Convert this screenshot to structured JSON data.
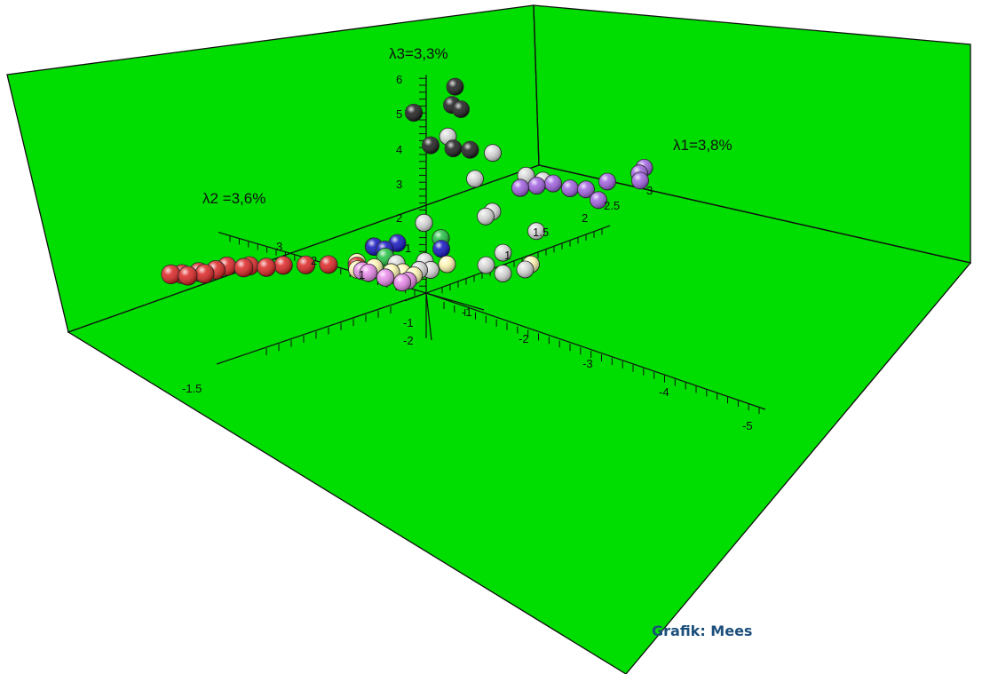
{
  "credit": "Grafik: Mees",
  "chart_data": {
    "type": "scatter",
    "dimensions": 3,
    "background_color": "#00dd00",
    "axes": {
      "x": {
        "label": "λ1=3,8%",
        "ticks": [
          "3",
          "2.5",
          "2",
          "1.5",
          "1"
        ]
      },
      "y": {
        "label": "λ2 =3,6%",
        "ticks": [
          "3",
          "2",
          "1"
        ]
      },
      "z": {
        "label": "λ3=3,3%",
        "ticks": [
          "6",
          "5",
          "4",
          "3",
          "2",
          "1"
        ]
      },
      "neg_x": {
        "ticks": [
          "-1",
          "-2",
          "-3",
          "-4",
          "-5"
        ]
      },
      "neg_y": {
        "ticks": [
          "-1.5"
        ]
      },
      "neg_z": {
        "ticks": [
          "-1",
          "-2"
        ]
      }
    },
    "series": [
      {
        "color": "#1a1a1a",
        "points": [
          [
            0.0,
            -0.5,
            6.2
          ],
          [
            0.0,
            -0.6,
            5.6
          ],
          [
            0.05,
            -0.4,
            5.6
          ],
          [
            0.2,
            0.4,
            4.9
          ],
          [
            0.3,
            0.2,
            4.0
          ],
          [
            0.4,
            -0.1,
            4.0
          ],
          [
            0.5,
            -0.3,
            4.0
          ]
        ]
      },
      {
        "color": "#d8d8d8",
        "points": [
          [
            0.3,
            -0.1,
            4.4
          ],
          [
            0.6,
            -0.6,
            4.0
          ],
          [
            0.7,
            -0.2,
            3.0
          ],
          [
            0.7,
            -0.5,
            2.2
          ],
          [
            0.9,
            -0.2,
            1.8
          ],
          [
            1.2,
            -0.8,
            1.5
          ],
          [
            0.5,
            0.5,
            1.5
          ],
          [
            0.9,
            -0.5,
            0.9
          ],
          [
            0.8,
            -0.3,
            0.5
          ],
          [
            1.1,
            -0.7,
            0.4
          ],
          [
            0.9,
            -0.5,
            0.3
          ],
          [
            2.2,
            0.3,
            2.0
          ],
          [
            2.3,
            0.1,
            1.9
          ],
          [
            0.3,
            0.3,
            0.6
          ],
          [
            0.3,
            0.2,
            0.4
          ],
          [
            0.2,
            0.7,
            0.4
          ],
          [
            0.3,
            0.4,
            0.3
          ]
        ]
      },
      {
        "color": "#a05fe0",
        "points": [
          [
            2.2,
            0.4,
            1.6
          ],
          [
            2.4,
            0.3,
            1.6
          ],
          [
            2.6,
            0.2,
            1.6
          ],
          [
            2.7,
            0.0,
            1.5
          ],
          [
            2.8,
            -0.4,
            1.3
          ],
          [
            3.0,
            0.0,
            1.3
          ],
          [
            3.4,
            0.0,
            1.3
          ],
          [
            3.8,
            -0.2,
            1.2
          ],
          [
            4.0,
            0.0,
            1.2
          ],
          [
            4.2,
            0.1,
            1.2
          ]
        ]
      },
      {
        "color": "#1010c0",
        "points": [
          [
            0.0,
            0.5,
            1.2
          ],
          [
            0.0,
            0.9,
            0.9
          ],
          [
            0.1,
            1.0,
            0.8
          ],
          [
            0.2,
            0.9,
            0.7
          ],
          [
            0.5,
            0.2,
            0.9
          ]
        ]
      },
      {
        "color": "#20c040",
        "points": [
          [
            0.6,
            0.3,
            1.1
          ],
          [
            0.1,
            0.8,
            0.6
          ]
        ]
      },
      {
        "color": "#fff5b0",
        "points": [
          [
            1.1,
            -0.8,
            0.6
          ],
          [
            0.5,
            0.1,
            0.5
          ],
          [
            0.0,
            1.2,
            0.3
          ],
          [
            -0.1,
            1.1,
            0.2
          ],
          [
            0.0,
            0.9,
            0.3
          ],
          [
            0.1,
            0.7,
            0.2
          ],
          [
            0.1,
            0.5,
            0.3
          ],
          [
            0.2,
            0.4,
            0.2
          ]
        ]
      },
      {
        "color": "#e887e8",
        "points": [
          [
            0.0,
            1.0,
            0.1
          ],
          [
            0.1,
            0.8,
            0.0
          ],
          [
            0.2,
            0.6,
            -0.1
          ],
          [
            0.2,
            0.5,
            0.0
          ],
          [
            0.1,
            1.2,
            0.0
          ]
        ]
      },
      {
        "color": "#dd2222",
        "points": [
          [
            -0.1,
            1.6,
            0.1
          ],
          [
            -0.2,
            1.9,
            0.0
          ],
          [
            -0.3,
            2.2,
            -0.1
          ],
          [
            -0.4,
            2.4,
            -0.2
          ],
          [
            -0.5,
            2.6,
            -0.2
          ],
          [
            -0.5,
            2.7,
            -0.3
          ],
          [
            -0.6,
            2.9,
            -0.3
          ],
          [
            -0.7,
            3.0,
            -0.4
          ],
          [
            -0.8,
            3.1,
            -0.5
          ],
          [
            -0.8,
            3.2,
            -0.5
          ],
          [
            -0.9,
            3.3,
            -0.6
          ],
          [
            -0.9,
            3.4,
            -0.6
          ],
          [
            -1.0,
            3.5,
            -0.6
          ],
          [
            0.0,
            1.2,
            0.2
          ]
        ]
      }
    ]
  }
}
